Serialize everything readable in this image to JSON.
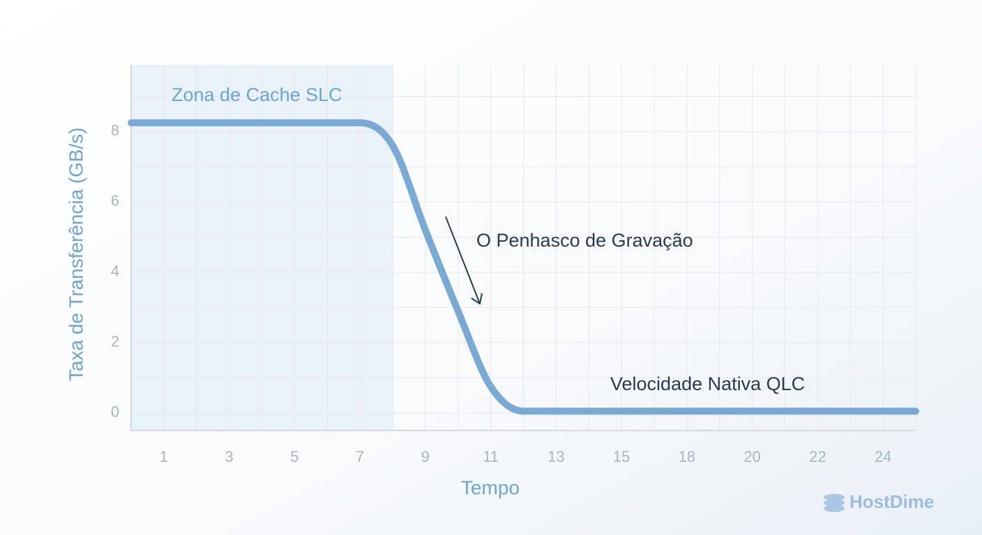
{
  "chart_data": {
    "type": "line",
    "x_label": "Tempo",
    "y_label": "Taxa de Transferência (GB/s)",
    "categories": [
      null,
      "1",
      null,
      "3",
      null,
      "5",
      null,
      "7",
      null,
      "9",
      null,
      "11",
      null,
      "13",
      null,
      "15",
      null,
      "18",
      null,
      "20",
      null,
      "22",
      null,
      "24",
      null
    ],
    "series": [
      {
        "name": "Taxa de Transferência",
        "color": "#7aaad4",
        "values": [
          8.25,
          8.25,
          8.25,
          8.25,
          8.25,
          8.25,
          8.25,
          8.25,
          7.6,
          5.2,
          2.9,
          0.75,
          0.05,
          0.05,
          0.05,
          0.05,
          0.05,
          0.05,
          0.05,
          0.05,
          0.05,
          0.05,
          0.05,
          0.05,
          0.05
        ]
      }
    ],
    "ylim": [
      -0.5,
      9.9
    ],
    "yticks": [
      0,
      2,
      4,
      6,
      8
    ],
    "minor_yticks": [
      1,
      3,
      5,
      7,
      9
    ],
    "grid": true,
    "annotations": [
      "Zona de Cache SLC",
      "O Penhasco de Gravação",
      "Velocidade Nativa QLC"
    ],
    "brand": "HostDime"
  }
}
